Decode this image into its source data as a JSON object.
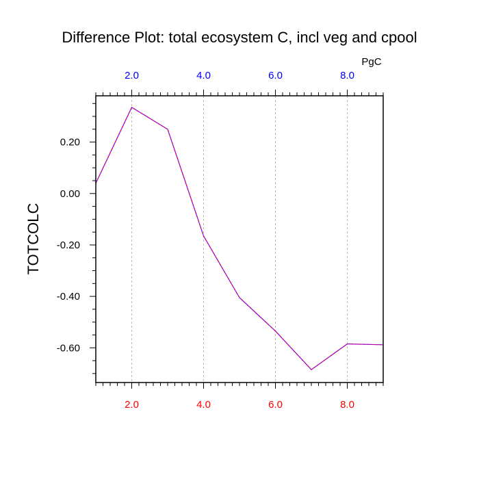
{
  "chart_data": {
    "type": "line",
    "title": "Difference Plot: total ecosystem C, incl veg and cpool",
    "units": "PgC",
    "ylabel": "TOTCOLC",
    "xlabel": "",
    "xlim": [
      1,
      9
    ],
    "ylim": [
      -0.735,
      0.38
    ],
    "grid": "vertical dashed",
    "x": [
      1,
      2,
      3,
      4,
      5,
      6,
      7,
      8,
      9
    ],
    "series": [
      {
        "color": "#7f00ff",
        "dash_color": "#ff0000",
        "values": [
          0.04,
          0.335,
          0.25,
          -0.165,
          -0.405,
          -0.535,
          -0.685,
          -0.585,
          -0.588
        ]
      }
    ],
    "x_ticks_bottom": [
      {
        "value": 2,
        "label": "2.0"
      },
      {
        "value": 4,
        "label": "4.0"
      },
      {
        "value": 6,
        "label": "6.0"
      },
      {
        "value": 8,
        "label": "8.0"
      }
    ],
    "x_ticks_top": [
      {
        "value": 2,
        "label": "2.0"
      },
      {
        "value": 4,
        "label": "4.0"
      },
      {
        "value": 6,
        "label": "6.0"
      },
      {
        "value": 8,
        "label": "8.0"
      }
    ],
    "y_ticks": [
      {
        "value": 0.2,
        "label": "0.20"
      },
      {
        "value": 0.0,
        "label": "0.00"
      },
      {
        "value": -0.2,
        "label": "-0.20"
      },
      {
        "value": -0.4,
        "label": "-0.40"
      },
      {
        "value": -0.6,
        "label": "-0.60"
      }
    ],
    "colors": {
      "bottom_tick_labels": "#ff0000",
      "top_tick_labels": "#0000ff",
      "grid": "#aaaaaa",
      "axes": "#000000"
    }
  }
}
